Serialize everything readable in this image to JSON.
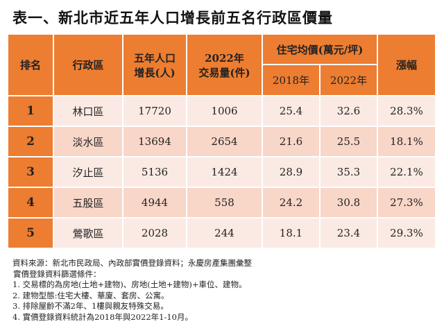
{
  "title": "表一、新北市近五年人口增長前五名行政區價量",
  "headers": {
    "rank": "排名",
    "district": "行政區",
    "pop_growth": "五年人口增長(人)",
    "pop_growth_l1": "五年人口",
    "pop_growth_l2": "增長(人)",
    "volume_l1": "2022年",
    "volume_l2": "交易量(件)",
    "price": "住宅均價(萬元/坪)",
    "y2018": "2018年",
    "y2022": "2022年",
    "change": "漲幅"
  },
  "rows": [
    {
      "rank": "1",
      "district": "林口區",
      "pop": "17720",
      "volume": "1006",
      "p2018": "25.4",
      "p2022": "32.6",
      "change": "28.3%"
    },
    {
      "rank": "2",
      "district": "淡水區",
      "pop": "13694",
      "volume": "2654",
      "p2018": "21.6",
      "p2022": "25.5",
      "change": "18.1%"
    },
    {
      "rank": "3",
      "district": "汐止區",
      "pop": "5136",
      "volume": "1424",
      "p2018": "28.9",
      "p2022": "35.3",
      "change": "22.1%"
    },
    {
      "rank": "4",
      "district": "五股區",
      "pop": "4944",
      "volume": "558",
      "p2018": "24.2",
      "p2022": "30.8",
      "change": "27.3%"
    },
    {
      "rank": "5",
      "district": "鶯歌區",
      "pop": "2028",
      "volume": "244",
      "p2018": "18.1",
      "p2022": "23.4",
      "change": "29.3%"
    }
  ],
  "notes": [
    "資料來源：新北市民政局、內政部實價登錄資料；永慶房產集團彙整",
    "實價登錄資料篩選條件：",
    "1. 交易標的為房地(土地+建物)、房地(土地+建物)+車位、建物。",
    "2. 建物型態:住宅大樓、華廈、套房、公寓。",
    "3. 排除屋齡不滿2年、1樓與親友特殊交易。",
    "4. 實價登錄資料統計為2018年與2022年1-10月。"
  ],
  "colors": {
    "header": "#ED7D31",
    "row_light": "#FBEAE4",
    "row_dark": "#F8D6C8"
  }
}
